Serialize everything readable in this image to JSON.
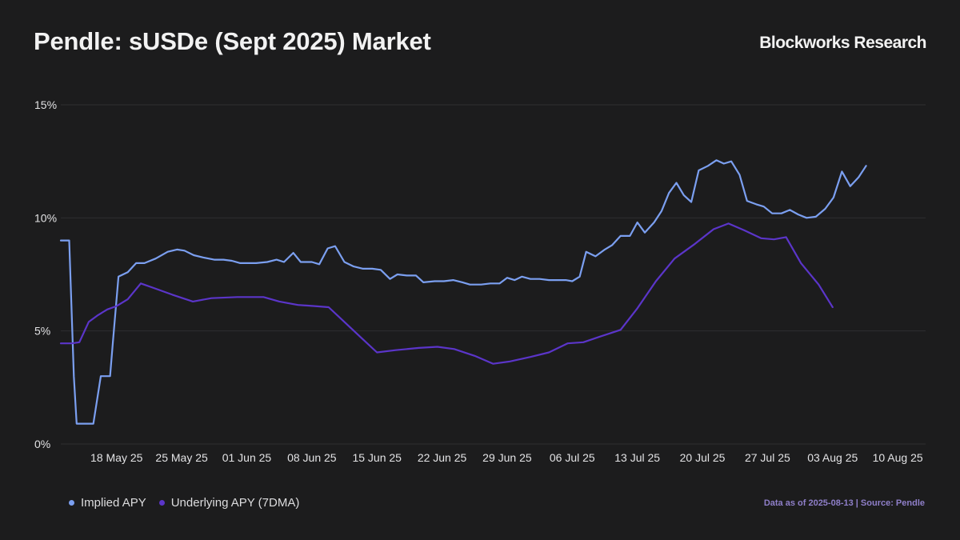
{
  "header": {
    "title": "Pendle: sUSDe (Sept 2025) Market",
    "brand": "Blockworks Research"
  },
  "footer": {
    "source_text": "Data as of 2025-08-13 | Source: Pendle"
  },
  "colors": {
    "background": "#1c1c1d",
    "gridline": "#2f2f31",
    "implied": "#7b9ff0",
    "underlying": "#5b35c9",
    "source_text": "#8f7fc9"
  },
  "chart_data": {
    "type": "line",
    "title": "Pendle: sUSDe (Sept 2025) Market",
    "xlabel": "",
    "ylabel": "",
    "x_range": [
      "2025-05-12",
      "2025-08-13"
    ],
    "ylim": [
      0,
      15
    ],
    "y_ticks": [
      {
        "value": 0,
        "label": "0%"
      },
      {
        "value": 5,
        "label": "5%"
      },
      {
        "value": 10,
        "label": "10%"
      },
      {
        "value": 15,
        "label": "15%"
      }
    ],
    "x_ticks": [
      {
        "date": "2025-05-18",
        "label": "18 May 25"
      },
      {
        "date": "2025-05-25",
        "label": "25 May 25"
      },
      {
        "date": "2025-06-01",
        "label": "01 Jun 25"
      },
      {
        "date": "2025-06-08",
        "label": "08 Jun 25"
      },
      {
        "date": "2025-06-15",
        "label": "15 Jun 25"
      },
      {
        "date": "2025-06-22",
        "label": "22 Jun 25"
      },
      {
        "date": "2025-06-29",
        "label": "29 Jun 25"
      },
      {
        "date": "2025-07-06",
        "label": "06 Jul 25"
      },
      {
        "date": "2025-07-13",
        "label": "13 Jul 25"
      },
      {
        "date": "2025-07-20",
        "label": "20 Jul 25"
      },
      {
        "date": "2025-07-27",
        "label": "27 Jul 25"
      },
      {
        "date": "2025-08-03",
        "label": "03 Aug 25"
      },
      {
        "date": "2025-08-10",
        "label": "10 Aug 25"
      }
    ],
    "grid": "horizontal",
    "legend_position": "bottom-left",
    "series": [
      {
        "name": "Implied APY",
        "color": "#7b9ff0",
        "points": [
          [
            "2025-05-12",
            9.0
          ],
          [
            "2025-05-12.9",
            9.0
          ],
          [
            "2025-05-13.4",
            3.0
          ],
          [
            "2025-05-13.7",
            0.9
          ],
          [
            "2025-05-14.5",
            0.9
          ],
          [
            "2025-05-15.5",
            0.9
          ],
          [
            "2025-05-16.3",
            3.0
          ],
          [
            "2025-05-17.3",
            3.0
          ],
          [
            "2025-05-17.6",
            4.5
          ],
          [
            "2025-05-18.2",
            7.4
          ],
          [
            "2025-05-19.2",
            7.6
          ],
          [
            "2025-05-20.1",
            8.0
          ],
          [
            "2025-05-21.0",
            8.0
          ],
          [
            "2025-05-22.2",
            8.2
          ],
          [
            "2025-05-23.5",
            8.5
          ],
          [
            "2025-05-24.5",
            8.6
          ],
          [
            "2025-05-25.3",
            8.55
          ],
          [
            "2025-05-26.3",
            8.35
          ],
          [
            "2025-05-27.3",
            8.25
          ],
          [
            "2025-05-28.5",
            8.15
          ],
          [
            "2025-05-29.5",
            8.15
          ],
          [
            "2025-05-30.4",
            8.1
          ],
          [
            "2025-05-31.3",
            8.0
          ],
          [
            "2025-06-02.0",
            8.0
          ],
          [
            "2025-06-03.2",
            8.05
          ],
          [
            "2025-06-04.2",
            8.15
          ],
          [
            "2025-06-05.0",
            8.05
          ],
          [
            "2025-06-06.0",
            8.45
          ],
          [
            "2025-06-06.8",
            8.05
          ],
          [
            "2025-06-08.0",
            8.05
          ],
          [
            "2025-06-08.8",
            7.95
          ],
          [
            "2025-06-09.7",
            8.65
          ],
          [
            "2025-06-10.5",
            8.75
          ],
          [
            "2025-06-11.5",
            8.05
          ],
          [
            "2025-06-12.5",
            7.85
          ],
          [
            "2025-06-13.5",
            7.75
          ],
          [
            "2025-06-14.5",
            7.75
          ],
          [
            "2025-06-15.4",
            7.7
          ],
          [
            "2025-06-16.4",
            7.3
          ],
          [
            "2025-06-17.2",
            7.5
          ],
          [
            "2025-06-18.2",
            7.45
          ],
          [
            "2025-06-19.2",
            7.45
          ],
          [
            "2025-06-20.0",
            7.15
          ],
          [
            "2025-06-21.2",
            7.2
          ],
          [
            "2025-06-22.2",
            7.2
          ],
          [
            "2025-06-23.2",
            7.25
          ],
          [
            "2025-06-24.2",
            7.15
          ],
          [
            "2025-06-25.0",
            7.05
          ],
          [
            "2025-06-26.2",
            7.05
          ],
          [
            "2025-06-27.2",
            7.1
          ],
          [
            "2025-06-28.2",
            7.1
          ],
          [
            "2025-06-29.0",
            7.35
          ],
          [
            "2025-06-29.8",
            7.25
          ],
          [
            "2025-06-30.6",
            7.4
          ],
          [
            "2025-07-01.5",
            7.3
          ],
          [
            "2025-07-02.5",
            7.3
          ],
          [
            "2025-07-03.5",
            7.25
          ],
          [
            "2025-07-04.5",
            7.25
          ],
          [
            "2025-07-05.3",
            7.25
          ],
          [
            "2025-07-06.0",
            7.2
          ],
          [
            "2025-07-06.8",
            7.4
          ],
          [
            "2025-07-07.5",
            8.5
          ],
          [
            "2025-07-08.5",
            8.3
          ],
          [
            "2025-07-09.5",
            8.6
          ],
          [
            "2025-07-10.3",
            8.8
          ],
          [
            "2025-07-11.2",
            9.2
          ],
          [
            "2025-07-12.2",
            9.2
          ],
          [
            "2025-07-13.0",
            9.8
          ],
          [
            "2025-07-13.8",
            9.35
          ],
          [
            "2025-07-14.8",
            9.8
          ],
          [
            "2025-07-15.6",
            10.3
          ],
          [
            "2025-07-16.4",
            11.1
          ],
          [
            "2025-07-17.2",
            11.55
          ],
          [
            "2025-07-18.0",
            11.0
          ],
          [
            "2025-07-18.8",
            10.7
          ],
          [
            "2025-07-19.6",
            12.1
          ],
          [
            "2025-07-20.6",
            12.3
          ],
          [
            "2025-07-21.5",
            12.55
          ],
          [
            "2025-07-22.3",
            12.4
          ],
          [
            "2025-07-23.1",
            12.5
          ],
          [
            "2025-07-24.0",
            11.9
          ],
          [
            "2025-07-24.8",
            10.75
          ],
          [
            "2025-07-25.8",
            10.6
          ],
          [
            "2025-07-26.6",
            10.5
          ],
          [
            "2025-07-27.5",
            10.2
          ],
          [
            "2025-07-28.5",
            10.2
          ],
          [
            "2025-07-29.4",
            10.35
          ],
          [
            "2025-07-30.3",
            10.15
          ],
          [
            "2025-07-31.2",
            10.0
          ],
          [
            "2025-08-01.2",
            10.05
          ],
          [
            "2025-08-02.2",
            10.4
          ],
          [
            "2025-08-03.1",
            10.9
          ],
          [
            "2025-08-04.0",
            12.05
          ],
          [
            "2025-08-04.9",
            11.4
          ],
          [
            "2025-08-05.8",
            11.8
          ],
          [
            "2025-08-06.6",
            12.3
          ]
        ]
      },
      {
        "name": "Underlying APY (7DMA)",
        "color": "#5b35c9",
        "points": [
          [
            "2025-05-12",
            4.45
          ],
          [
            "2025-05-13.2",
            4.45
          ],
          [
            "2025-05-14.0",
            4.5
          ],
          [
            "2025-05-15.0",
            5.4
          ],
          [
            "2025-05-16.0",
            5.7
          ],
          [
            "2025-05-17.0",
            5.95
          ],
          [
            "2025-05-18.0",
            6.1
          ],
          [
            "2025-05-19.2",
            6.4
          ],
          [
            "2025-05-20.6",
            7.1
          ],
          [
            "2025-05-22.0",
            6.9
          ],
          [
            "2025-05-24.0",
            6.6
          ],
          [
            "2025-05-26.2",
            6.3
          ],
          [
            "2025-05-28.2",
            6.45
          ],
          [
            "2025-05-31.0",
            6.5
          ],
          [
            "2025-06-02.8",
            6.5
          ],
          [
            "2025-06-04.5",
            6.3
          ],
          [
            "2025-06-06.5",
            6.15
          ],
          [
            "2025-06-08.3",
            6.1
          ],
          [
            "2025-06-09.8",
            6.05
          ],
          [
            "2025-06-11.5",
            5.4
          ],
          [
            "2025-06-13.3",
            4.7
          ],
          [
            "2025-06-15.0",
            4.05
          ],
          [
            "2025-06-17.0",
            4.15
          ],
          [
            "2025-06-19.5",
            4.25
          ],
          [
            "2025-06-21.5",
            4.3
          ],
          [
            "2025-06-23.3",
            4.2
          ],
          [
            "2025-06-25.5",
            3.9
          ],
          [
            "2025-06-27.5",
            3.55
          ],
          [
            "2025-06-29.3",
            3.65
          ],
          [
            "2025-07-01.5",
            3.85
          ],
          [
            "2025-07-03.5",
            4.05
          ],
          [
            "2025-07-05.5",
            4.45
          ],
          [
            "2025-07-07.2",
            4.5
          ],
          [
            "2025-07-09.0",
            4.75
          ],
          [
            "2025-07-11.2",
            5.05
          ],
          [
            "2025-07-13.0",
            6.0
          ],
          [
            "2025-07-15.0",
            7.2
          ],
          [
            "2025-07-17.0",
            8.2
          ],
          [
            "2025-07-19.2",
            8.85
          ],
          [
            "2025-07-21.2",
            9.5
          ],
          [
            "2025-07-22.8",
            9.75
          ],
          [
            "2025-07-24.5",
            9.45
          ],
          [
            "2025-07-26.3",
            9.1
          ],
          [
            "2025-07-27.7",
            9.05
          ],
          [
            "2025-07-29.0",
            9.15
          ],
          [
            "2025-07-30.6",
            8.0
          ],
          [
            "2025-08-01.5",
            7.05
          ],
          [
            "2025-08-03.0",
            6.05
          ]
        ]
      }
    ]
  }
}
